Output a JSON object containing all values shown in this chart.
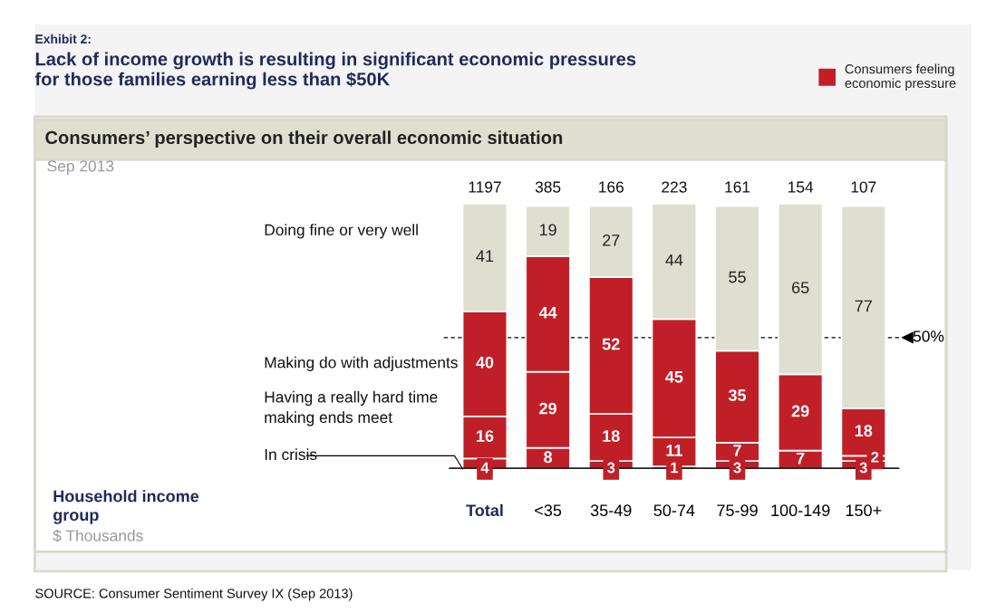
{
  "chart_data": {
    "type": "bar",
    "stacked": true,
    "title": "Lack of income growth is resulting in significant economic pressures\nfor those families earning less than $50K",
    "subtitle": "Consumers’ perspective on their overall economic situation",
    "legend": "left",
    "categories": [
      "Total",
      "<35",
      "35-49",
      "50-74",
      "75-99",
      "100-149",
      "150+"
    ],
    "series": [
      {
        "name": "In crisis",
        "color": "#c01f27",
        "values": [
          4,
          8,
          3,
          1,
          3,
          null,
          3
        ]
      },
      {
        "name": "Having a really hard time\nmaking ends meet",
        "color": "#c01f27",
        "values": [
          16,
          29,
          18,
          11,
          7,
          7,
          2
        ]
      },
      {
        "name": "Making do with adjustments",
        "color": "#c01f27",
        "values": [
          40,
          44,
          52,
          45,
          35,
          29,
          18
        ]
      },
      {
        "name": "Doing fine or very well",
        "color": "#dedfd0",
        "values": [
          41,
          19,
          27,
          44,
          55,
          65,
          77
        ]
      }
    ],
    "data_labels": true,
    "ref_lines": [
      {
        "axis": "y",
        "value": 50,
        "label": "50%",
        "line_style": "dashed"
      }
    ],
    "annotations": [
      "Exhibit 2:",
      "Sep 2013",
      "$ Thousands",
      "SOURCE: Consumer Sentiment Survey IX (Sep 2013)",
      "1197",
      "385",
      "166",
      "223",
      "161",
      "154",
      "107",
      "Household income\ngroup",
      "Consumers feeling\neconomic pressure"
    ]
  }
}
